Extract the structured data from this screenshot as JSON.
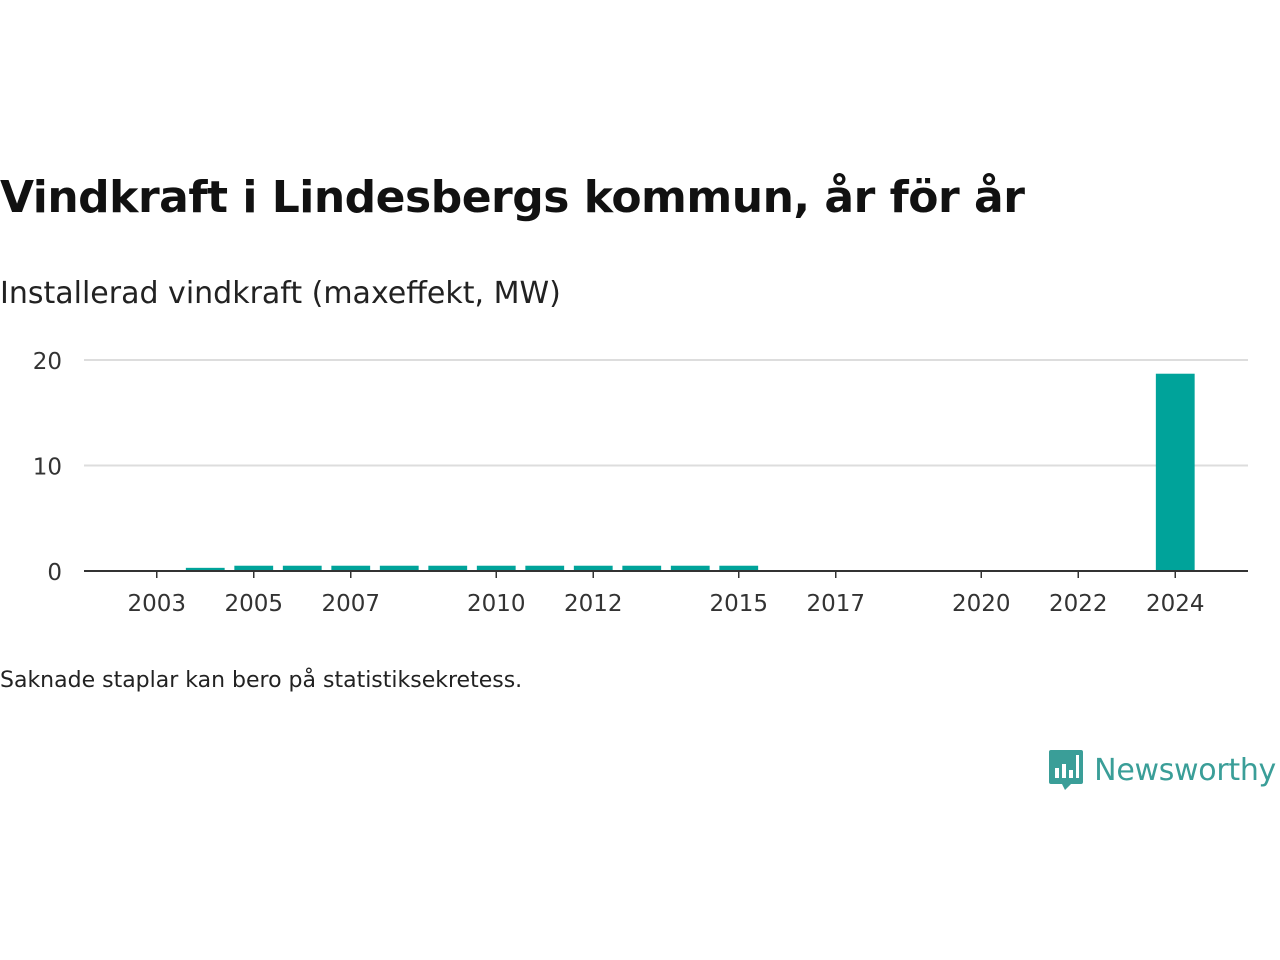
{
  "title": "Vindkraft i Lindesbergs kommun, år för år",
  "subtitle": "Installerad vindkraft (maxeffekt, MW)",
  "note": "Saknade staplar kan bero på statistiksekretess.",
  "brand": {
    "name": "Newsworthy",
    "icon": "newsworthy-logo-icon",
    "color": "#3a9e98"
  },
  "chart_data": {
    "type": "bar",
    "x": [
      2004,
      2005,
      2006,
      2007,
      2008,
      2009,
      2010,
      2011,
      2012,
      2013,
      2014,
      2015,
      2024
    ],
    "values": [
      0.3,
      0.5,
      0.5,
      0.5,
      0.5,
      0.5,
      0.5,
      0.5,
      0.5,
      0.5,
      0.5,
      0.5,
      18.7
    ],
    "xlim": [
      2001.5,
      2025.5
    ],
    "ylim": [
      0,
      20
    ],
    "y_ticks": [
      0,
      10,
      20
    ],
    "x_ticks": [
      2003,
      2005,
      2007,
      2010,
      2012,
      2015,
      2017,
      2020,
      2022,
      2024
    ],
    "grid": true,
    "bar_color": "#00a39a"
  }
}
